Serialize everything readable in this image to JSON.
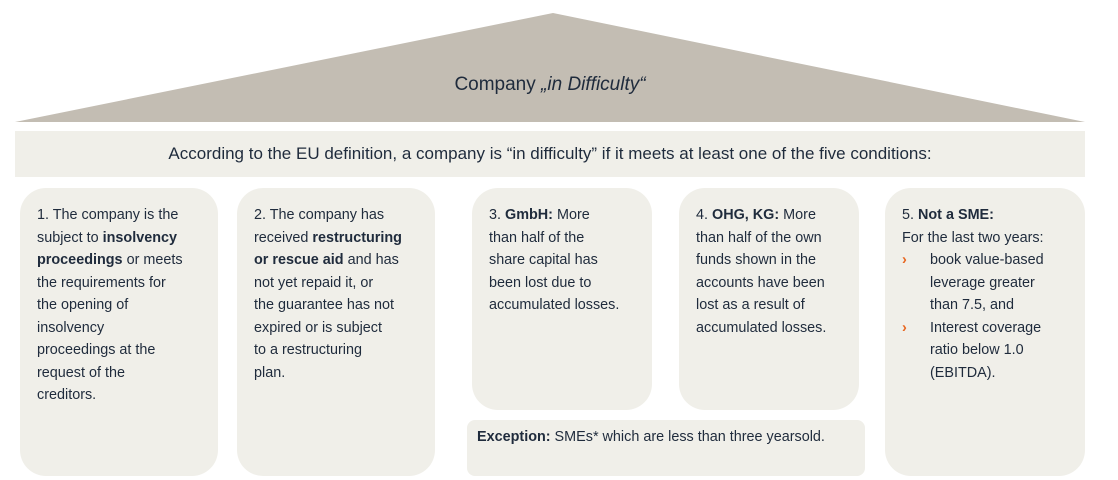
{
  "colors": {
    "roof": "#c3bdb3",
    "panel": "#f0efe9",
    "text": "#1f2b3c",
    "bullet": "#e8651e"
  },
  "roof": {
    "title_prefix": "Company ",
    "title_italic": "„in Difficulty“"
  },
  "banner": {
    "text": "According to the EU definition, a company is “in difficulty” if it meets at least one of the five conditions:"
  },
  "conditions": [
    {
      "lines": [
        [
          {
            "t": "1. The company is the"
          }
        ],
        [
          {
            "t": "subject to "
          },
          {
            "t": "insolvency",
            "b": true
          }
        ],
        [
          {
            "t": "proceedings",
            "b": true
          },
          {
            "t": " or meets"
          }
        ],
        [
          {
            "t": "the requirements for"
          }
        ],
        [
          {
            "t": "the opening of"
          }
        ],
        [
          {
            "t": "insolvency"
          }
        ],
        [
          {
            "t": "proceedings at the"
          }
        ],
        [
          {
            "t": "request of the"
          }
        ],
        [
          {
            "t": "creditors."
          }
        ]
      ]
    },
    {
      "lines": [
        [
          {
            "t": "2. The company has"
          }
        ],
        [
          {
            "t": "received "
          },
          {
            "t": "restructuring",
            "b": true
          }
        ],
        [
          {
            "t": "or rescue aid",
            "b": true
          },
          {
            "t": " and has"
          }
        ],
        [
          {
            "t": "not yet repaid it, or"
          }
        ],
        [
          {
            "t": "the guarantee has not"
          }
        ],
        [
          {
            "t": "expired or is subject"
          }
        ],
        [
          {
            "t": "to a restructuring"
          }
        ],
        [
          {
            "t": "plan."
          }
        ]
      ]
    },
    {
      "lines": [
        [
          {
            "t": "3. "
          },
          {
            "t": "GmbH:",
            "b": true
          },
          {
            "t": " More"
          }
        ],
        [
          {
            "t": "than half of the"
          }
        ],
        [
          {
            "t": "share capital has"
          }
        ],
        [
          {
            "t": "been lost due to"
          }
        ],
        [
          {
            "t": "accumulated losses."
          }
        ]
      ]
    },
    {
      "lines": [
        [
          {
            "t": "4. "
          },
          {
            "t": "OHG, KG:",
            "b": true
          },
          {
            "t": " More"
          }
        ],
        [
          {
            "t": "than half of the own"
          }
        ],
        [
          {
            "t": "funds shown in the"
          }
        ],
        [
          {
            "t": "accounts have been"
          }
        ],
        [
          {
            "t": "lost as a result of"
          }
        ],
        [
          {
            "t": "accumulated losses."
          }
        ]
      ]
    },
    {
      "lines": [
        [
          {
            "t": "5. "
          },
          {
            "t": "Not a SME:",
            "b": true
          }
        ],
        [
          {
            "t": "For the last two years:"
          }
        ],
        [
          {
            "t": "book value-based",
            "bullet": true
          }
        ],
        [
          {
            "t": "leverage greater",
            "indent": true
          }
        ],
        [
          {
            "t": "than 7.5, and",
            "indent": true
          }
        ],
        [
          {
            "t": "Interest coverage",
            "bullet": true
          }
        ],
        [
          {
            "t": "ratio below 1.0",
            "indent": true
          }
        ],
        [
          {
            "t": "(EBITDA).",
            "indent": true
          }
        ]
      ]
    }
  ],
  "exception": {
    "lines": [
      [
        {
          "t": "Exception:",
          "b": true
        },
        {
          "t": " SMEs* which are less than three years"
        }
      ],
      [
        {
          "t": "old."
        }
      ]
    ]
  },
  "icons": {
    "bullet": "chevron-right-icon"
  }
}
